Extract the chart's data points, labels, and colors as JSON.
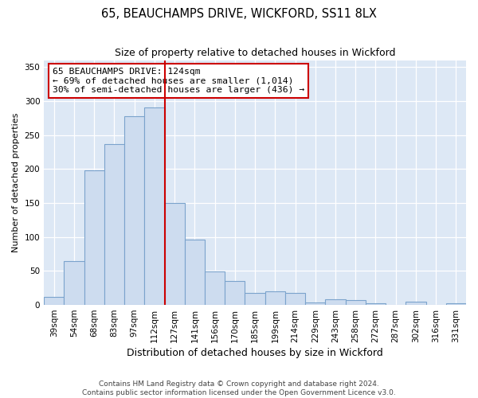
{
  "title": "65, BEAUCHAMPS DRIVE, WICKFORD, SS11 8LX",
  "subtitle": "Size of property relative to detached houses in Wickford",
  "xlabel": "Distribution of detached houses by size in Wickford",
  "ylabel": "Number of detached properties",
  "bar_labels": [
    "39sqm",
    "54sqm",
    "68sqm",
    "83sqm",
    "97sqm",
    "112sqm",
    "127sqm",
    "141sqm",
    "156sqm",
    "170sqm",
    "185sqm",
    "199sqm",
    "214sqm",
    "229sqm",
    "243sqm",
    "258sqm",
    "272sqm",
    "287sqm",
    "302sqm",
    "316sqm",
    "331sqm"
  ],
  "bar_values": [
    12,
    65,
    198,
    237,
    277,
    290,
    150,
    96,
    49,
    35,
    18,
    20,
    18,
    4,
    8,
    7,
    2,
    0,
    5,
    0,
    3
  ],
  "bar_color": "#cddcef",
  "bar_edge_color": "#7ba3cc",
  "vline_x_index": 5.5,
  "vline_color": "#cc0000",
  "annotation_title": "65 BEAUCHAMPS DRIVE: 124sqm",
  "annotation_line1": "← 69% of detached houses are smaller (1,014)",
  "annotation_line2": "30% of semi-detached houses are larger (436) →",
  "annotation_box_facecolor": "white",
  "annotation_box_edgecolor": "#cc0000",
  "ylim": [
    0,
    360
  ],
  "yticks": [
    0,
    50,
    100,
    150,
    200,
    250,
    300,
    350
  ],
  "footnote1": "Contains HM Land Registry data © Crown copyright and database right 2024.",
  "footnote2": "Contains public sector information licensed under the Open Government Licence v3.0.",
  "background_color": "#dde8f5",
  "grid_color": "#ffffff",
  "title_fontsize": 10.5,
  "subtitle_fontsize": 9,
  "ylabel_fontsize": 8,
  "xlabel_fontsize": 9,
  "tick_fontsize": 7.5,
  "footnote_fontsize": 6.5
}
